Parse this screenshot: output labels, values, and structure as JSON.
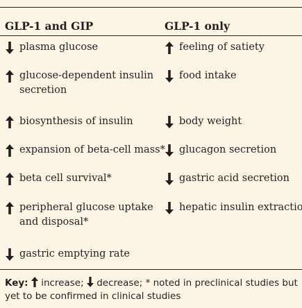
{
  "table": {
    "columns": [
      {
        "header": "GLP-1 and GIP",
        "items": [
          {
            "direction": "down",
            "icon": "down-arrow-icon",
            "lines": [
              "plasma glucose"
            ]
          },
          {
            "direction": "up",
            "icon": "up-arrow-icon",
            "lines": [
              "glucose-dependent insulin",
              "secretion"
            ]
          },
          {
            "direction": "up",
            "icon": "up-arrow-icon",
            "lines": [
              "biosynthesis of insulin"
            ]
          },
          {
            "direction": "up",
            "icon": "up-arrow-icon",
            "lines": [
              "expansion of beta-cell mass*"
            ]
          },
          {
            "direction": "up",
            "icon": "up-arrow-icon",
            "lines": [
              "beta cell survival*"
            ]
          },
          {
            "direction": "up",
            "icon": "up-arrow-icon",
            "lines": [
              "peripheral glucose uptake",
              "and disposal*"
            ]
          },
          {
            "direction": "down",
            "icon": "down-arrow-icon",
            "lines": [
              "gastric emptying rate"
            ]
          }
        ]
      },
      {
        "header": "GLP-1 only",
        "items": [
          {
            "direction": "up",
            "icon": "up-arrow-icon",
            "lines": [
              "feeling of satiety"
            ]
          },
          {
            "direction": "down",
            "icon": "down-arrow-icon",
            "lines": [
              "food intake"
            ]
          },
          {
            "direction": "down",
            "icon": "down-arrow-icon",
            "lines": [
              "body weight"
            ]
          },
          {
            "direction": "down",
            "icon": "down-arrow-icon",
            "lines": [
              "glucagon secretion"
            ]
          },
          {
            "direction": "down",
            "icon": "down-arrow-icon",
            "lines": [
              "gastric acid secretion"
            ]
          },
          {
            "direction": "down",
            "icon": "down-arrow-icon",
            "lines": [
              "hepatic insulin extraction"
            ]
          }
        ]
      }
    ]
  },
  "key": {
    "label": "Key:",
    "increase": "increase;",
    "decrease": "decrease;",
    "note": "* noted in preclinical studies but yet to be confirmed in clinical studies"
  },
  "colors": {
    "background": "#fcf5e6",
    "text": "#231f20"
  }
}
